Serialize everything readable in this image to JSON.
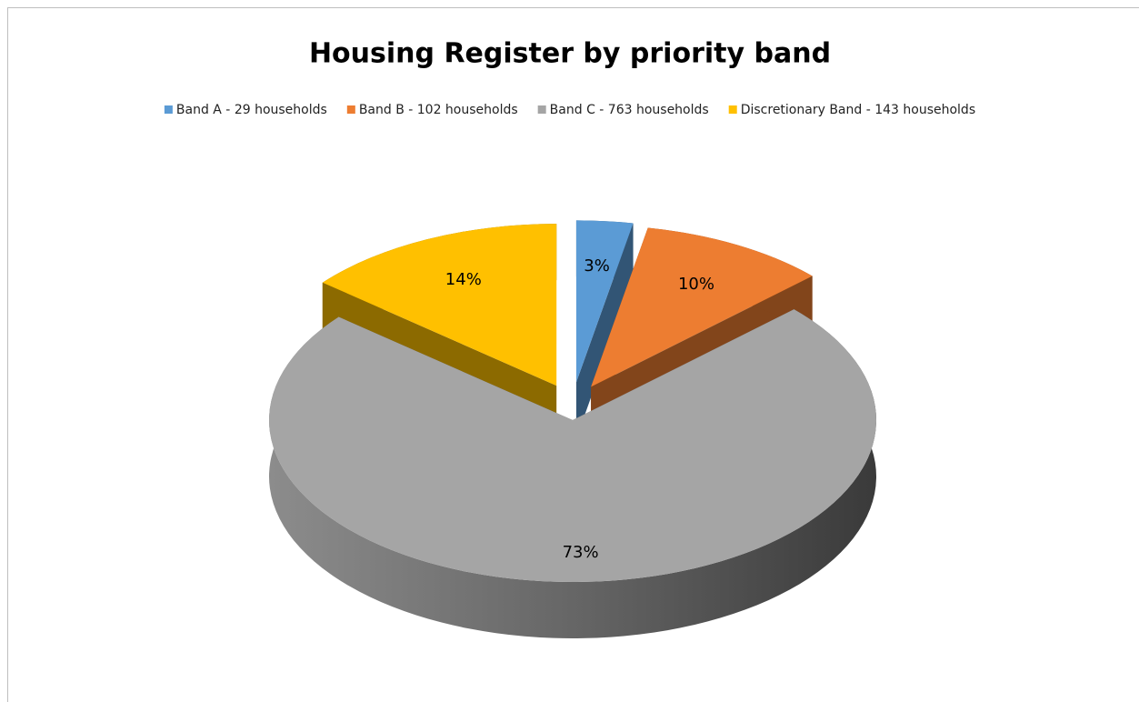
{
  "chart_data": {
    "type": "pie",
    "title": "Housing Register by priority band",
    "categories": [
      "Band A - 29 households",
      "Band B - 102 households",
      "Band C - 763 households",
      "Discretionary Band - 143 households"
    ],
    "values": [
      3,
      10,
      73,
      14
    ],
    "value_labels": [
      "3%",
      "10%",
      "73%",
      "14%"
    ],
    "colors": [
      "#5b9bd5",
      "#ed7d31",
      "#a5a5a5",
      "#ffc000"
    ],
    "legend": "top"
  }
}
